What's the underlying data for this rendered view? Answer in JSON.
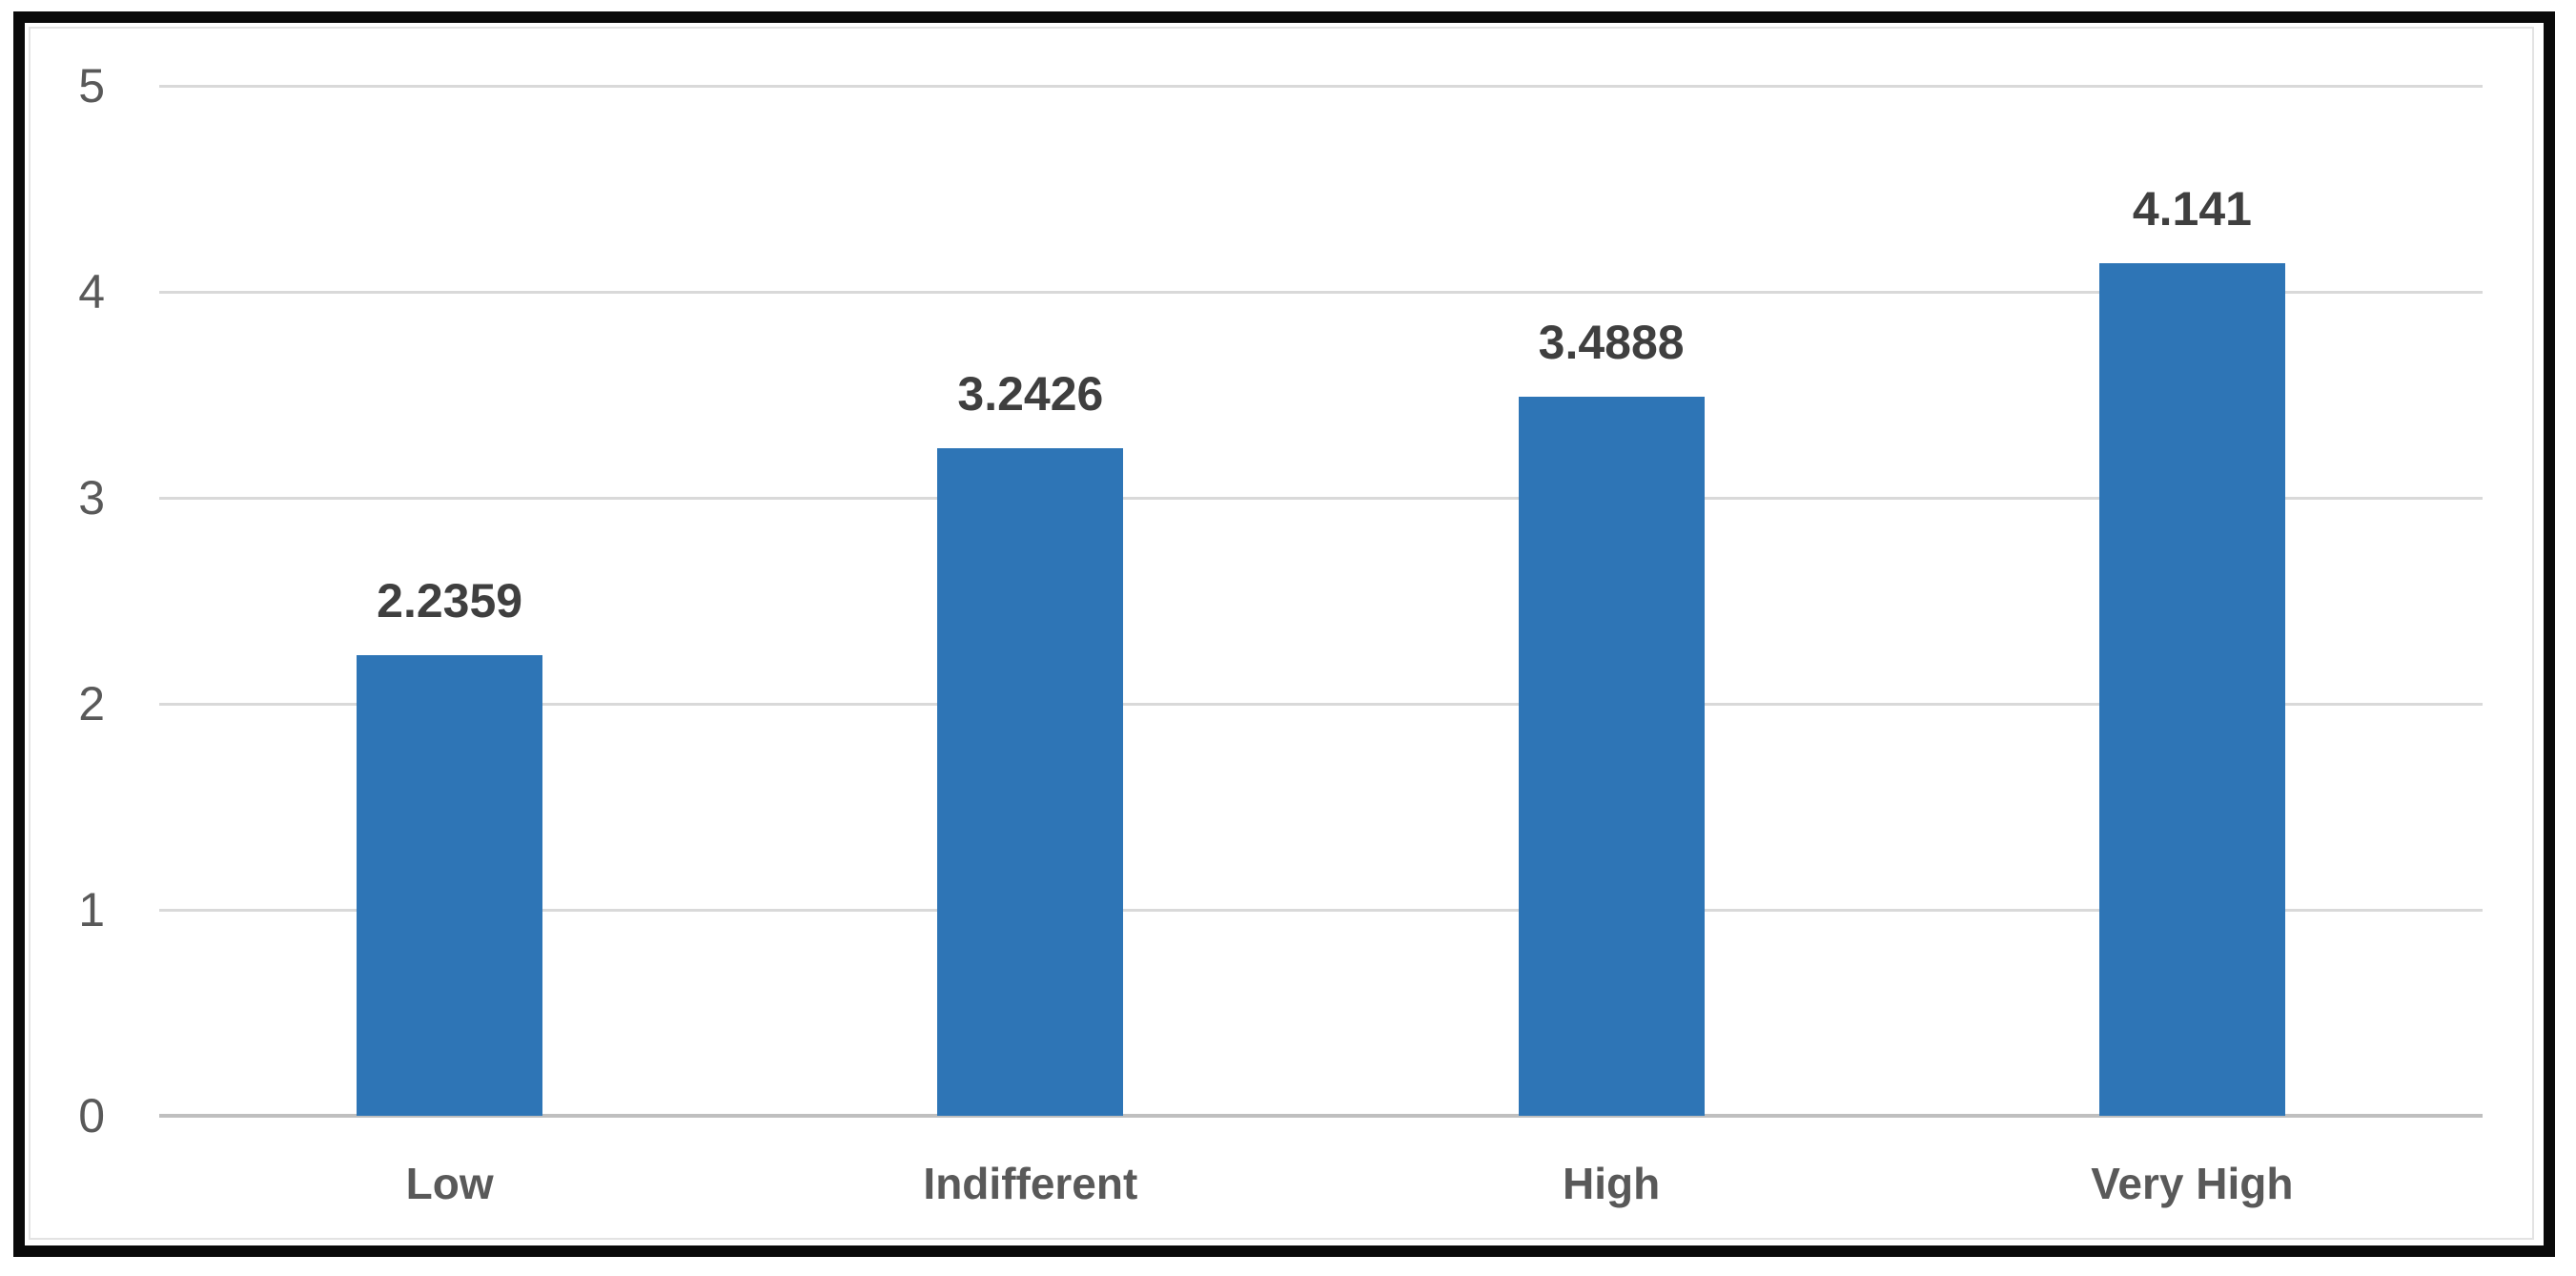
{
  "chart_data": {
    "type": "bar",
    "title": "",
    "xlabel": "",
    "ylabel": "",
    "categories": [
      "Low",
      "Indifferent",
      "High",
      "Very High"
    ],
    "values": [
      2.2359,
      3.2426,
      3.4888,
      4.141
    ],
    "data_labels": [
      "2.2359",
      "3.2426",
      "3.4888",
      "4.141"
    ],
    "y_ticks": [
      0,
      1,
      2,
      3,
      4,
      5
    ],
    "ylim": [
      0,
      5
    ],
    "grid": true,
    "legend_position": "none",
    "colors": {
      "bar": "#2E75B6",
      "gridline": "#D9D9D9",
      "axis_line": "#BFBFBF",
      "y_tick_label": "#595959",
      "data_label": "#3F3F3F",
      "category_label": "#595959",
      "outer_frame": "#0A0A0A",
      "inner_border": "#E3E3E3",
      "background": "#FFFFFF"
    }
  }
}
